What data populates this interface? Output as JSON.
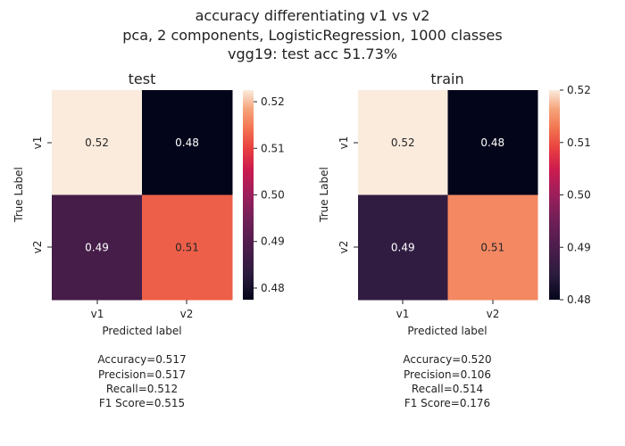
{
  "suptitle": [
    "accuracy differentiating v1 vs v2",
    "pca, 2 components, LogisticRegression, 1000 classes",
    "vgg19: test acc 51.73%"
  ],
  "chart_data": [
    {
      "type": "heatmap",
      "title": "test",
      "xlabel": "Predicted label",
      "ylabel": "True Label",
      "x_categories": [
        "v1",
        "v2"
      ],
      "y_categories": [
        "v1",
        "v2"
      ],
      "values": [
        [
          0.52,
          0.48
        ],
        [
          0.49,
          0.51
        ]
      ],
      "cell_values": [
        [
          0.5225,
          0.4775
        ],
        [
          0.4875,
          0.5125
        ]
      ],
      "annotations": [
        [
          "0.52",
          "0.48"
        ],
        [
          "0.49",
          "0.51"
        ]
      ],
      "colorbar": {
        "range": [
          0.4775,
          0.5225
        ],
        "ticks": [
          0.48,
          0.49,
          0.5,
          0.51,
          0.52
        ],
        "tick_labels": [
          "0.48",
          "0.49",
          "0.50",
          "0.51",
          "0.52"
        ]
      },
      "colormap": "rocket",
      "metrics": [
        "Accuracy=0.517",
        "Precision=0.517",
        "Recall=0.512",
        "F1 Score=0.515"
      ]
    },
    {
      "type": "heatmap",
      "title": "train",
      "xlabel": "Predicted label",
      "ylabel": "True Label",
      "x_categories": [
        "v1",
        "v2"
      ],
      "y_categories": [
        "v1",
        "v2"
      ],
      "values": [
        [
          0.52,
          0.48
        ],
        [
          0.49,
          0.51
        ]
      ],
      "cell_values": [
        [
          0.5203,
          0.4797
        ],
        [
          0.4858,
          0.5142
        ]
      ],
      "annotations": [
        [
          "0.52",
          "0.48"
        ],
        [
          "0.49",
          "0.51"
        ]
      ],
      "colorbar": {
        "range": [
          0.48,
          0.52
        ],
        "ticks": [
          0.48,
          0.49,
          0.5,
          0.51,
          0.52
        ],
        "tick_labels": [
          "0.48",
          "0.49",
          "0.50",
          "0.51",
          "0.52"
        ]
      },
      "colormap": "rocket",
      "metrics": [
        "Accuracy=0.520",
        "Precision=0.106",
        "Recall=0.514",
        "F1 Score=0.176"
      ]
    }
  ]
}
